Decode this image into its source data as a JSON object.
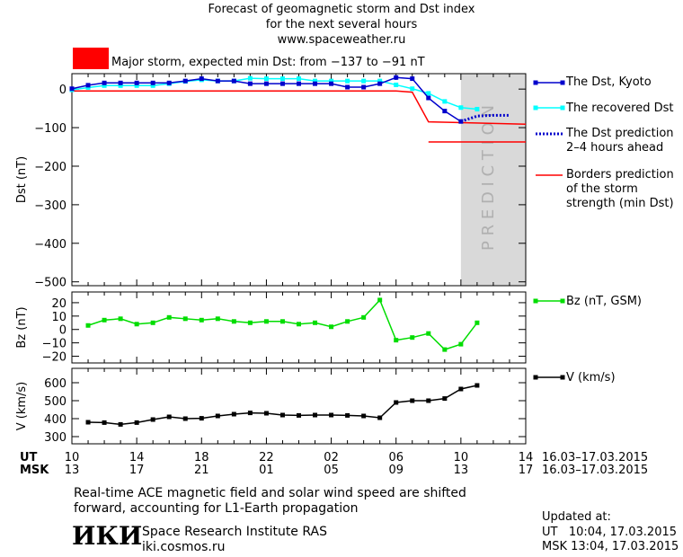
{
  "header": {
    "title_line1": "Forecast of geomagnetic storm and Dst index",
    "title_line2": "for the next several hours",
    "url": "www.spaceweather.ru",
    "storm_color": "#ff0000",
    "storm_text": "Major storm, expected min Dst: from −137 to −91 nT"
  },
  "legend": {
    "dst_kyoto": "The Dst, Kyoto",
    "recovered": "The recovered Dst",
    "prediction_line1": "The Dst prediction",
    "prediction_line2": "2–4 hours ahead",
    "borders_line1": "Borders prediction",
    "borders_line2": "of the storm",
    "borders_line3": "strength (min Dst)",
    "bz": "Bz (nT, GSM)",
    "v": "V (km/s)"
  },
  "prediction_label": "PREDICTION",
  "axes": {
    "ut_label": "UT",
    "msk_label": "MSK",
    "ut_ticks": [
      "10",
      "14",
      "18",
      "22",
      "02",
      "06",
      "10",
      "14"
    ],
    "msk_ticks": [
      "13",
      "17",
      "21",
      "01",
      "05",
      "09",
      "13",
      "17"
    ],
    "ut_range": "16.03–17.03.2015",
    "msk_range": "16.03–17.03.2015"
  },
  "footer": {
    "note_line1": "Real-time ACE magnetic field and solar wind speed are shifted",
    "note_line2": "forward, accounting for L1-Earth propagation",
    "logo_text": "ИКИ",
    "institute": "Space Research Institute RAS",
    "site": "iki.cosmos.ru",
    "updated_label": "Updated at:",
    "updated_ut": "UT   10:04, 17.03.2015",
    "updated_msk": "MSK 13:04, 17.03.2015"
  },
  "colors": {
    "dst": "#0000cc",
    "recovered": "#00ffff",
    "prediction": "#0000cc",
    "borders": "#ff0000",
    "bz": "#00dd00",
    "v": "#000000",
    "prediction_band": "#d9d9d9"
  },
  "chart_data": [
    {
      "type": "line",
      "ylabel": "Dst (nT)",
      "ylim": [
        -510,
        40
      ],
      "yticks": [
        0,
        -100,
        -200,
        -300,
        -400,
        -500
      ],
      "x_hours_range": [
        0,
        28
      ],
      "prediction_band_hours": [
        24,
        28
      ],
      "series": [
        {
          "name": "The Dst, Kyoto",
          "x": [
            0,
            1,
            2,
            3,
            4,
            5,
            6,
            7,
            8,
            9,
            10,
            11,
            12,
            13,
            14,
            15,
            16,
            17,
            18,
            19,
            20,
            21,
            22,
            23,
            24
          ],
          "values": [
            1,
            10,
            16,
            16,
            16,
            16,
            16,
            21,
            27,
            21,
            21,
            14,
            14,
            14,
            14,
            14,
            14,
            5,
            5,
            14,
            30,
            27,
            -23,
            -57,
            -84
          ]
        },
        {
          "name": "The recovered Dst",
          "x": [
            0,
            1,
            2,
            3,
            4,
            5,
            6,
            7,
            8,
            9,
            10,
            11,
            12,
            13,
            14,
            15,
            16,
            17,
            18,
            19,
            20,
            21,
            22,
            23,
            24,
            25
          ],
          "values": [
            -2,
            4,
            9,
            9,
            9,
            9,
            14,
            20,
            24,
            21,
            21,
            28,
            27,
            27,
            27,
            21,
            21,
            21,
            21,
            21,
            11,
            1,
            -11,
            -32,
            -48,
            -52
          ]
        },
        {
          "name": "The Dst prediction 2–4 hours ahead",
          "x": [
            24,
            25,
            26,
            27
          ],
          "values": [
            -84,
            -70,
            -68,
            -68
          ]
        },
        {
          "name": "Borders prediction of the storm strength (min Dst)",
          "segments": [
            {
              "x": [
                0,
                20,
                21,
                22,
                28
              ],
              "values": [
                -5,
                -5,
                -8,
                -85,
                -91
              ]
            },
            {
              "x": [
                22,
                28
              ],
              "values": [
                -137,
                -137
              ]
            }
          ]
        }
      ]
    },
    {
      "type": "line",
      "ylabel": "Bz (nT)",
      "ylim": [
        -25,
        28
      ],
      "yticks": [
        20,
        10,
        0,
        -10,
        -20
      ],
      "series": [
        {
          "name": "Bz (nT, GSM)",
          "x": [
            1,
            2,
            3,
            4,
            5,
            6,
            7,
            8,
            9,
            10,
            11,
            12,
            13,
            14,
            15,
            16,
            17,
            18,
            19,
            20,
            21,
            22,
            23,
            24,
            25
          ],
          "values": [
            3,
            7,
            8,
            4,
            5,
            9,
            8,
            7,
            8,
            6,
            5,
            6,
            6,
            4,
            5,
            2,
            6,
            9,
            22,
            -8,
            -6,
            -3,
            -15,
            -11,
            5
          ]
        }
      ]
    },
    {
      "type": "line",
      "ylabel": "V (km/s)",
      "ylim": [
        260,
        680
      ],
      "yticks": [
        600,
        500,
        400,
        300
      ],
      "series": [
        {
          "name": "V (km/s)",
          "x": [
            1,
            2,
            3,
            4,
            5,
            6,
            7,
            8,
            9,
            10,
            11,
            12,
            13,
            14,
            15,
            16,
            17,
            18,
            19,
            20,
            21,
            22,
            23,
            24,
            25
          ],
          "values": [
            380,
            378,
            368,
            378,
            395,
            410,
            400,
            402,
            415,
            425,
            432,
            430,
            420,
            418,
            420,
            420,
            418,
            415,
            405,
            490,
            500,
            500,
            512,
            565,
            585
          ]
        }
      ]
    }
  ]
}
